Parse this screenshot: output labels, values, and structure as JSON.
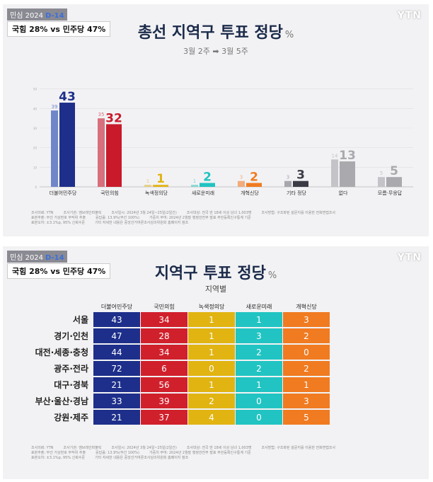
{
  "header": {
    "badge": "민심 2024",
    "dday": "D-14",
    "headline": "국힘 28% vs 민주당 47%",
    "logo": "YTN"
  },
  "chart_data": [
    {
      "type": "bar",
      "title": "총선 지역구 투표 정당",
      "title_suffix": "%",
      "subtitle_from": "3월 2주",
      "subtitle_arrow": "➡",
      "subtitle_to": "3월 5주",
      "categories": [
        "더불어민주당",
        "국민의힘",
        "녹색정의당",
        "새로운미래",
        "개혁신당",
        "기타 정당",
        "없다",
        "모름·무응답"
      ],
      "series": [
        {
          "period": "3월 2주",
          "values": [
            39,
            35,
            1,
            1,
            3,
            3,
            14,
            5
          ]
        },
        {
          "period": "3월 5주",
          "values": [
            43,
            32,
            1,
            2,
            2,
            3,
            13,
            5
          ]
        }
      ],
      "ylim": [
        0,
        60
      ],
      "yticks": [
        0,
        10,
        20,
        30,
        40,
        50
      ],
      "colors_prev": [
        "#6f86c9",
        "#d76f7c",
        "#e6cd7e",
        "#84d6d4",
        "#f1ab7c",
        "#a7a7ad",
        "#c4c4c8",
        "#c4c4c8"
      ],
      "colors_curr": [
        "#1d2f8a",
        "#c81a2a",
        "#e1b412",
        "#21c4c2",
        "#f07b21",
        "#3b3b46",
        "#a9a9ae",
        "#a9a9ae"
      ]
    },
    {
      "type": "table",
      "title": "지역구 투표 정당",
      "title_suffix": "%",
      "subtitle": "지역별",
      "columns": [
        "더불어민주당",
        "국민의힘",
        "녹색정의당",
        "새로운미래",
        "개혁신당"
      ],
      "rows": [
        {
          "region": "서울",
          "values": [
            43,
            34,
            1,
            1,
            3
          ]
        },
        {
          "region": "경기·인천",
          "values": [
            47,
            28,
            1,
            3,
            2
          ]
        },
        {
          "region": "대전·세종·충청",
          "values": [
            44,
            34,
            1,
            2,
            0
          ]
        },
        {
          "region": "광주·전라",
          "values": [
            72,
            6,
            0,
            2,
            2
          ]
        },
        {
          "region": "대구·경북",
          "values": [
            21,
            56,
            1,
            1,
            1
          ]
        },
        {
          "region": "부산·울산·경남",
          "values": [
            33,
            39,
            2,
            0,
            3
          ]
        },
        {
          "region": "강원·제주",
          "values": [
            21,
            37,
            4,
            0,
            5
          ]
        }
      ]
    }
  ],
  "footer": {
    "line1": [
      "조사의뢰: YTN",
      "조사기관: 엠브레인퍼블릭",
      "조사일시: 2024년 3월 24일~25일(2일간)",
      "조사대상: 전국 만 18세 이상 남녀 1,003명",
      "조사방법: 구조화된 설문지를 이용한 전화면접조사"
    ],
    "line2": [
      "표본추출: 무선 가상번호 무작위 추출",
      "응답률: 13.9%(무선 100%)",
      "가중치 부여: 2024년 2월말 행정안전부 발표 주민등록인구통계 기준"
    ],
    "line3": [
      "표본오차: ±3.1%p, 95% 신뢰수준",
      "기타 자세한 내용은 중앙선거여론조사심의위원회 홈페이지 참조"
    ]
  }
}
